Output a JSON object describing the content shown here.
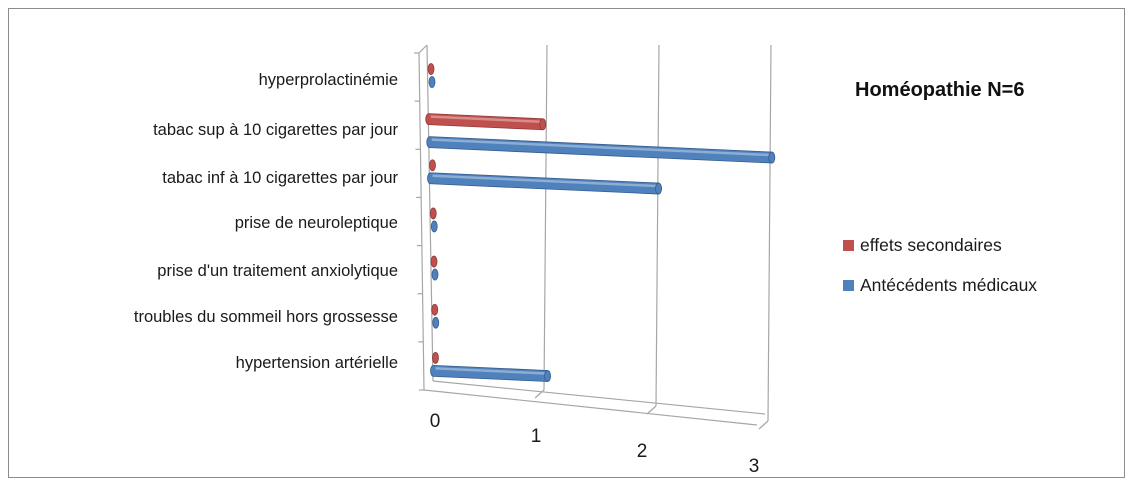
{
  "chart_data": {
    "type": "bar",
    "orientation": "horizontal",
    "title": "Homéopathie N=6",
    "categories": [
      "hyperprolactinémie",
      "tabac sup à 10 cigarettes par jour",
      "tabac inf à 10 cigarettes par jour",
      "prise de neuroleptique",
      "prise d'un traitement anxiolytique",
      "troubles du sommeil hors grossesse",
      "hypertension artérielle"
    ],
    "series": [
      {
        "name": "effets secondaires",
        "color": "#c0504d",
        "values": [
          0,
          1,
          0,
          0,
          0,
          0,
          0
        ]
      },
      {
        "name": "Antécédents médicaux",
        "color": "#4f81bd",
        "values": [
          0,
          3,
          2,
          0,
          0,
          0,
          1
        ]
      }
    ],
    "x_ticks": [
      "0",
      "1",
      "2",
      "3"
    ],
    "xlim": [
      0,
      3
    ],
    "grid": true,
    "legend_position": "right"
  }
}
